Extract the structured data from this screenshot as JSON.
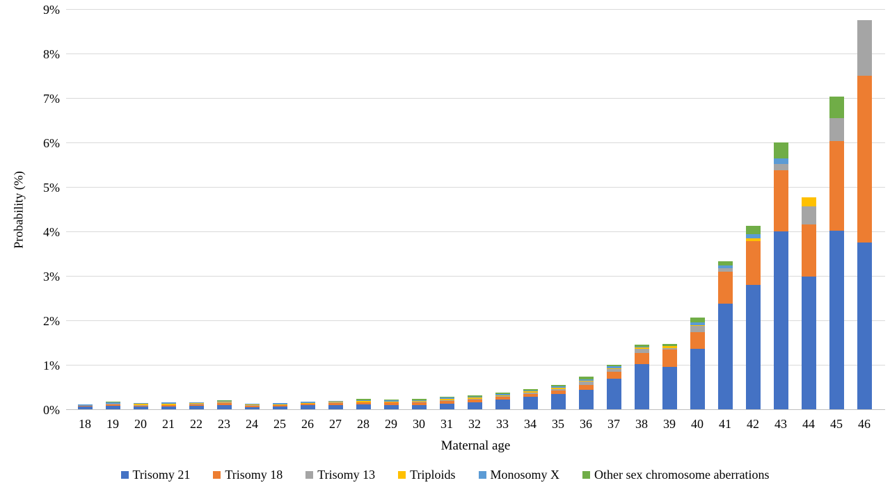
{
  "figure": {
    "background": "#ffffff"
  },
  "colors": {
    "gridline": "#d9d9d9",
    "axis_line": "#bfbfbf",
    "text": "#000000"
  },
  "chart_data": {
    "type": "bar",
    "stacked": true,
    "title": "",
    "xlabel": "Maternal age",
    "ylabel": "Probability (%)",
    "ylim": [
      0,
      9
    ],
    "grid": "horizontal",
    "legend_position": "bottom",
    "yticks": [
      "0%",
      "1%",
      "2%",
      "3%",
      "4%",
      "5%",
      "6%",
      "7%",
      "8%",
      "9%"
    ],
    "categories": [
      "18",
      "19",
      "20",
      "21",
      "22",
      "23",
      "24",
      "25",
      "26",
      "27",
      "28",
      "29",
      "30",
      "31",
      "32",
      "33",
      "34",
      "35",
      "36",
      "37",
      "38",
      "39",
      "40",
      "41",
      "42",
      "43",
      "44",
      "45",
      "46"
    ],
    "series": [
      {
        "name": "Trisomy 21",
        "color": "#4472c4",
        "values": [
          0.07,
          0.08,
          0.06,
          0.07,
          0.08,
          0.1,
          0.05,
          0.06,
          0.09,
          0.1,
          0.11,
          0.1,
          0.1,
          0.12,
          0.16,
          0.22,
          0.28,
          0.35,
          0.43,
          0.68,
          1.01,
          0.95,
          1.36,
          2.38,
          2.79,
          4.0,
          2.98,
          4.02,
          3.75
        ]
      },
      {
        "name": "Trisomy 18",
        "color": "#ed7d31",
        "values": [
          0.01,
          0.03,
          0.02,
          0.03,
          0.03,
          0.04,
          0.03,
          0.03,
          0.03,
          0.04,
          0.04,
          0.05,
          0.06,
          0.07,
          0.06,
          0.06,
          0.07,
          0.08,
          0.12,
          0.17,
          0.25,
          0.4,
          0.38,
          0.72,
          0.99,
          1.37,
          1.18,
          2.01,
          3.75
        ]
      },
      {
        "name": "Trisomy 13",
        "color": "#a5a5a5",
        "values": [
          0.0,
          0.01,
          0.01,
          0.0,
          0.01,
          0.01,
          0.01,
          0.01,
          0.0,
          0.01,
          0.01,
          0.01,
          0.01,
          0.02,
          0.02,
          0.01,
          0.02,
          0.03,
          0.07,
          0.05,
          0.1,
          0.03,
          0.13,
          0.07,
          0.0,
          0.15,
          0.4,
          0.52,
          1.25
        ]
      },
      {
        "name": "Triploids",
        "color": "#ffc000",
        "values": [
          0.0,
          0.01,
          0.03,
          0.03,
          0.02,
          0.02,
          0.02,
          0.01,
          0.02,
          0.02,
          0.03,
          0.02,
          0.02,
          0.02,
          0.02,
          0.02,
          0.03,
          0.02,
          0.02,
          0.02,
          0.03,
          0.04,
          0.02,
          0.0,
          0.06,
          0.0,
          0.21,
          0.0,
          0.0
        ]
      },
      {
        "name": "Monosomy X",
        "color": "#5b9bd5",
        "values": [
          0.03,
          0.02,
          0.02,
          0.02,
          0.02,
          0.02,
          0.02,
          0.03,
          0.03,
          0.02,
          0.02,
          0.02,
          0.02,
          0.03,
          0.02,
          0.04,
          0.03,
          0.03,
          0.04,
          0.05,
          0.02,
          0.0,
          0.07,
          0.07,
          0.1,
          0.12,
          0.0,
          0.0,
          0.0
        ]
      },
      {
        "name": "Other sex chromosome aberrations",
        "color": "#70ad47",
        "values": [
          0.0,
          0.02,
          0.0,
          0.0,
          0.0,
          0.02,
          0.0,
          0.0,
          0.0,
          0.0,
          0.03,
          0.02,
          0.03,
          0.03,
          0.03,
          0.02,
          0.03,
          0.04,
          0.05,
          0.03,
          0.05,
          0.05,
          0.1,
          0.09,
          0.18,
          0.36,
          0.0,
          0.48,
          0.0
        ]
      }
    ]
  }
}
